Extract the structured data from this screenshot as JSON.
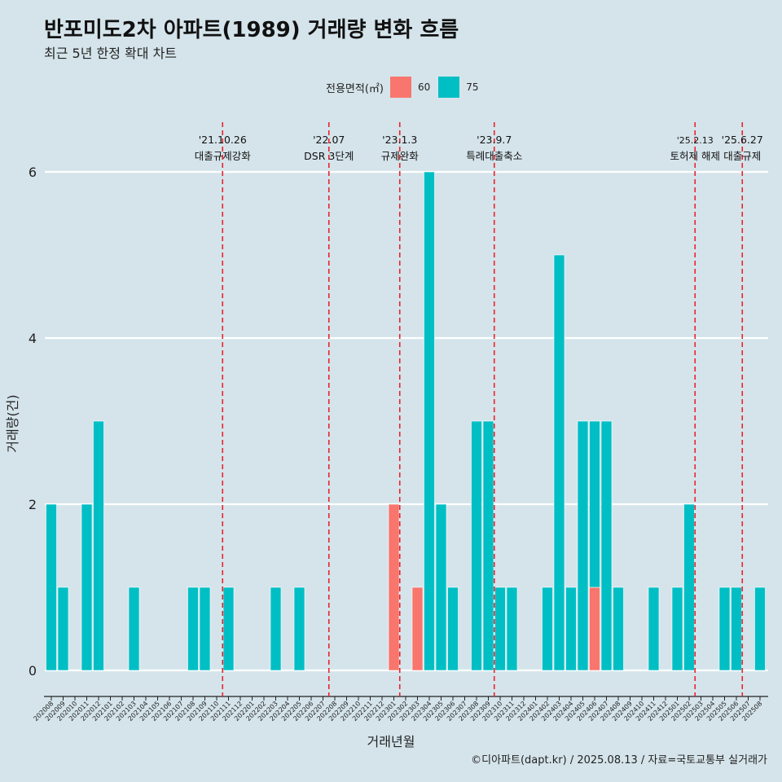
{
  "title": "반포미도2차 아파트(1989) 거래량 변화 흐름",
  "subtitle": "최근 5년 한정 확대 차트",
  "legend": {
    "title": "전용면적(㎡)",
    "items": [
      {
        "label": "60",
        "color": "#f8766d"
      },
      {
        "label": "75",
        "color": "#00bfc4"
      }
    ]
  },
  "caption": "©디아파트(dapt.kr) / 2025.08.13 / 자료=국토교통부 실거래가",
  "chart_data": {
    "type": "bar",
    "stacked": true,
    "xlabel": "거래년월",
    "ylabel": "거래량(건)",
    "ylim": [
      0,
      6
    ],
    "yticks": [
      0,
      2,
      4,
      6
    ],
    "grid": "horizontal",
    "legend_position": "top",
    "categories": [
      "202008",
      "202009",
      "202010",
      "202011",
      "202012",
      "202101",
      "202102",
      "202103",
      "202104",
      "202105",
      "202106",
      "202107",
      "202108",
      "202109",
      "202110",
      "202111",
      "202112",
      "202201",
      "202202",
      "202203",
      "202204",
      "202205",
      "202206",
      "202207",
      "202208",
      "202209",
      "202210",
      "202211",
      "202212",
      "202301",
      "202302",
      "202303",
      "202304",
      "202305",
      "202306",
      "202307",
      "202308",
      "202309",
      "202310",
      "202311",
      "202312",
      "202401",
      "202402",
      "202403",
      "202404",
      "202405",
      "202406",
      "202407",
      "202408",
      "202409",
      "202410",
      "202411",
      "202412",
      "202501",
      "202502",
      "202503",
      "202504",
      "202505",
      "202506",
      "202507",
      "202508"
    ],
    "series": [
      {
        "name": "60",
        "color": "#f8766d",
        "values": [
          0,
          0,
          0,
          0,
          0,
          0,
          0,
          0,
          0,
          0,
          0,
          0,
          0,
          0,
          0,
          0,
          0,
          0,
          0,
          0,
          0,
          0,
          0,
          0,
          0,
          0,
          0,
          0,
          0,
          2,
          0,
          1,
          0,
          0,
          0,
          0,
          0,
          0,
          0,
          0,
          0,
          0,
          0,
          0,
          0,
          0,
          1,
          0,
          0,
          0,
          0,
          0,
          0,
          0,
          0,
          0,
          0,
          0,
          0,
          0,
          0
        ]
      },
      {
        "name": "75",
        "color": "#00bfc4",
        "values": [
          2,
          1,
          0,
          2,
          3,
          0,
          0,
          1,
          0,
          0,
          0,
          0,
          1,
          1,
          0,
          1,
          0,
          0,
          0,
          1,
          0,
          1,
          0,
          0,
          0,
          0,
          0,
          0,
          0,
          0,
          0,
          0,
          6,
          2,
          1,
          0,
          3,
          3,
          1,
          1,
          0,
          0,
          1,
          5,
          1,
          3,
          2,
          3,
          1,
          0,
          0,
          1,
          0,
          1,
          2,
          0,
          0,
          1,
          1,
          0,
          1
        ]
      }
    ],
    "annotations": [
      {
        "date_label": "'21.10.26",
        "text": "대출규제강화",
        "position": 14.5
      },
      {
        "date_label": "'22.07",
        "text": "DSR 3단계",
        "position": 23.5
      },
      {
        "date_label": "'23.1.3",
        "text": "규제완화",
        "position": 29.5
      },
      {
        "date_label": "'23.9.7",
        "text": "특례대출축소",
        "position": 37.5
      },
      {
        "date_label": "'25.2.13",
        "text": "토허제 해제",
        "position": 54.5
      },
      {
        "date_label": "'25.6.27",
        "text": "대출규제",
        "position": 58.5
      }
    ]
  }
}
